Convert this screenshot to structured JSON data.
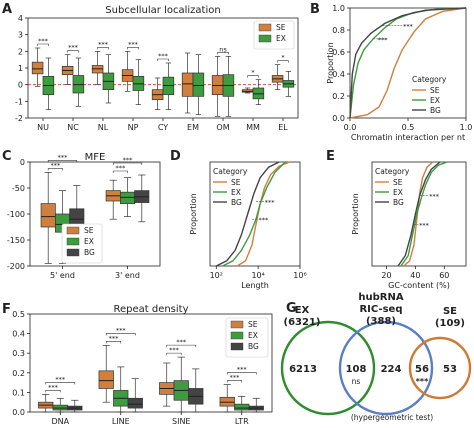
{
  "colors": {
    "SE": "#d07f3f",
    "EX": "#3e9b3f",
    "BG": "#444444",
    "venn_EX": "#2e8b2e",
    "venn_RIC": "#5a7fc4",
    "venn_SE": "#cf7a34",
    "median": "#222222"
  },
  "panel_labels": {
    "A": "A",
    "B": "B",
    "C": "C",
    "D": "D",
    "E": "E",
    "F": "F",
    "G": "G"
  },
  "chart_data": [
    {
      "id": "A",
      "type": "box",
      "title": "Subcellular localization",
      "categories": [
        "NU",
        "NC",
        "NL",
        "NP",
        "CY",
        "EM",
        "OM",
        "MM",
        "EL"
      ],
      "ylim": [
        -2,
        4
      ],
      "yticks": [
        -2,
        -1,
        0,
        1,
        2,
        3,
        4
      ],
      "legend": {
        "position": "top-right",
        "entries": [
          "SE",
          "EX"
        ]
      },
      "annotations": [
        "***",
        "***",
        "***",
        "***",
        "***",
        "",
        "ns",
        "*",
        "*"
      ],
      "series": [
        {
          "name": "SE",
          "boxes": [
            {
              "lo": -0.1,
              "q1": 0.65,
              "med": 0.95,
              "q3": 1.35,
              "hi": 2.2
            },
            {
              "lo": 0.0,
              "q1": 0.6,
              "med": 0.85,
              "q3": 1.1,
              "hi": 1.8
            },
            {
              "lo": 0.0,
              "q1": 0.7,
              "med": 0.95,
              "q3": 1.15,
              "hi": 2.0
            },
            {
              "lo": -0.4,
              "q1": 0.2,
              "med": 0.55,
              "q3": 0.9,
              "hi": 2.0
            },
            {
              "lo": -1.5,
              "q1": -0.9,
              "med": -0.6,
              "q3": -0.3,
              "hi": 0.4
            },
            {
              "lo": -1.7,
              "q1": -0.7,
              "med": 0.05,
              "q3": 0.7,
              "hi": 1.9
            },
            {
              "lo": -1.9,
              "q1": -0.6,
              "med": -0.05,
              "q3": 0.55,
              "hi": 1.7
            },
            {
              "lo": -0.5,
              "q1": -0.45,
              "med": -0.4,
              "q3": -0.3,
              "hi": -0.2
            },
            {
              "lo": -0.3,
              "q1": 0.15,
              "med": 0.35,
              "q3": 0.55,
              "hi": 1.2
            }
          ]
        },
        {
          "name": "EX",
          "boxes": [
            {
              "lo": -1.5,
              "q1": -0.6,
              "med": -0.05,
              "q3": 0.5,
              "hi": 1.6
            },
            {
              "lo": -1.3,
              "q1": -0.5,
              "med": 0.0,
              "q3": 0.55,
              "hi": 1.6
            },
            {
              "lo": -1.1,
              "q1": -0.3,
              "med": 0.2,
              "q3": 0.7,
              "hi": 1.8
            },
            {
              "lo": -1.2,
              "q1": -0.35,
              "med": 0.05,
              "q3": 0.5,
              "hi": 1.5
            },
            {
              "lo": -1.5,
              "q1": -0.6,
              "med": -0.05,
              "q3": 0.45,
              "hi": 1.3
            },
            {
              "lo": -1.8,
              "q1": -0.7,
              "med": -0.05,
              "q3": 0.7,
              "hi": 1.8
            },
            {
              "lo": -1.9,
              "q1": -0.7,
              "med": -0.05,
              "q3": 0.6,
              "hi": 1.7
            },
            {
              "lo": -1.2,
              "q1": -0.85,
              "med": -0.55,
              "q3": -0.2,
              "hi": 0.3
            },
            {
              "lo": -0.7,
              "q1": -0.15,
              "med": 0.05,
              "q3": 0.25,
              "hi": 0.8
            }
          ]
        }
      ]
    },
    {
      "id": "B",
      "type": "line",
      "xlabel": "Chromatin interaction per nt",
      "ylabel": "Proportion",
      "xlim": [
        0,
        1.0
      ],
      "ylim": [
        0,
        1.0
      ],
      "xticks": [
        0.0,
        0.5,
        1.0
      ],
      "yticks": [
        0.0,
        0.2,
        0.4,
        0.6,
        0.8,
        1.0
      ],
      "legend": {
        "title": "Category",
        "position": "bottom-right",
        "entries": [
          "SE",
          "EX",
          "BG"
        ]
      },
      "annotations": [
        "***",
        "***"
      ],
      "series": [
        {
          "name": "SE",
          "points": [
            [
              0,
              0
            ],
            [
              0.15,
              0.03
            ],
            [
              0.25,
              0.1
            ],
            [
              0.32,
              0.25
            ],
            [
              0.38,
              0.45
            ],
            [
              0.45,
              0.62
            ],
            [
              0.55,
              0.78
            ],
            [
              0.65,
              0.9
            ],
            [
              0.8,
              0.97
            ],
            [
              1.0,
              1.0
            ]
          ]
        },
        {
          "name": "EX",
          "points": [
            [
              0,
              0
            ],
            [
              0.03,
              0.3
            ],
            [
              0.07,
              0.5
            ],
            [
              0.12,
              0.62
            ],
            [
              0.2,
              0.72
            ],
            [
              0.3,
              0.82
            ],
            [
              0.4,
              0.9
            ],
            [
              0.55,
              0.96
            ],
            [
              0.75,
              0.99
            ],
            [
              1.0,
              1.0
            ]
          ]
        },
        {
          "name": "BG",
          "points": [
            [
              0,
              0
            ],
            [
              0.02,
              0.4
            ],
            [
              0.05,
              0.58
            ],
            [
              0.1,
              0.68
            ],
            [
              0.18,
              0.77
            ],
            [
              0.3,
              0.86
            ],
            [
              0.45,
              0.93
            ],
            [
              0.65,
              0.98
            ],
            [
              1.0,
              1.0
            ]
          ]
        }
      ]
    },
    {
      "id": "C",
      "type": "box",
      "title": "MFE",
      "categories": [
        "5' end",
        "3' end"
      ],
      "ylim": [
        -200,
        0
      ],
      "yticks": [
        -200,
        -150,
        -100,
        -50,
        0
      ],
      "legend": {
        "position": "bottom-center",
        "entries": [
          "SE",
          "EX",
          "BG"
        ]
      },
      "annotations": [
        "***",
        "***",
        "***",
        "***"
      ],
      "series": [
        {
          "name": "SE",
          "boxes": [
            {
              "lo": -195,
              "q1": -125,
              "med": -105,
              "q3": -80,
              "hi": -20
            },
            {
              "lo": -110,
              "q1": -75,
              "med": -65,
              "q3": -55,
              "hi": -35
            }
          ]
        },
        {
          "name": "EX",
          "boxes": [
            {
              "lo": -195,
              "q1": -135,
              "med": -120,
              "q3": -100,
              "hi": -55
            },
            {
              "lo": -105,
              "q1": -80,
              "med": -68,
              "q3": -58,
              "hi": -30
            }
          ]
        },
        {
          "name": "BG",
          "boxes": [
            {
              "lo": -185,
              "q1": -125,
              "med": -110,
              "q3": -90,
              "hi": -45
            },
            {
              "lo": -115,
              "q1": -78,
              "med": -67,
              "q3": -55,
              "hi": -25
            }
          ]
        }
      ]
    },
    {
      "id": "D",
      "type": "line",
      "xlabel": "Length",
      "ylabel": "Proportion",
      "xscale": "log",
      "xlim_log10": [
        1.7,
        6.0
      ],
      "ylim": [
        0,
        1.0
      ],
      "xtick_labels": [
        "10²",
        "10⁴",
        "10⁶"
      ],
      "xtick_exponents": [
        2,
        4,
        6
      ],
      "legend": {
        "title": "Category",
        "position": "top-left",
        "entries": [
          "SE",
          "EX",
          "BG"
        ]
      },
      "annotations": [
        "***",
        "***"
      ],
      "series": [
        {
          "name": "SE",
          "points": [
            [
              3.0,
              0
            ],
            [
              3.4,
              0.05
            ],
            [
              3.7,
              0.2
            ],
            [
              3.9,
              0.4
            ],
            [
              4.1,
              0.6
            ],
            [
              4.3,
              0.75
            ],
            [
              4.6,
              0.88
            ],
            [
              5.0,
              0.96
            ],
            [
              5.5,
              1.0
            ]
          ]
        },
        {
          "name": "EX",
          "points": [
            [
              2.3,
              0
            ],
            [
              2.8,
              0.05
            ],
            [
              3.2,
              0.15
            ],
            [
              3.6,
              0.3
            ],
            [
              3.9,
              0.45
            ],
            [
              4.1,
              0.6
            ],
            [
              4.4,
              0.75
            ],
            [
              4.8,
              0.9
            ],
            [
              5.3,
              1.0
            ]
          ]
        },
        {
          "name": "BG",
          "points": [
            [
              2.0,
              0
            ],
            [
              2.5,
              0.05
            ],
            [
              2.9,
              0.15
            ],
            [
              3.2,
              0.3
            ],
            [
              3.5,
              0.5
            ],
            [
              3.8,
              0.7
            ],
            [
              4.1,
              0.85
            ],
            [
              4.5,
              0.95
            ],
            [
              5.0,
              1.0
            ]
          ]
        }
      ]
    },
    {
      "id": "E",
      "type": "line",
      "xlabel": "GC-content (%)",
      "ylabel": "Proportion",
      "xlim": [
        10,
        75
      ],
      "ylim": [
        0,
        1.0
      ],
      "xticks": [
        20,
        40,
        60
      ],
      "legend": {
        "title": "Category",
        "position": "top-left",
        "entries": [
          "SE",
          "EX",
          "BG"
        ]
      },
      "annotations": [
        "***",
        "***"
      ],
      "series": [
        {
          "name": "SE",
          "points": [
            [
              32,
              0
            ],
            [
              36,
              0.05
            ],
            [
              39,
              0.2
            ],
            [
              41,
              0.45
            ],
            [
              43,
              0.7
            ],
            [
              45,
              0.85
            ],
            [
              48,
              0.95
            ],
            [
              52,
              1.0
            ]
          ]
        },
        {
          "name": "EX",
          "points": [
            [
              30,
              0
            ],
            [
              35,
              0.1
            ],
            [
              38,
              0.3
            ],
            [
              41,
              0.5
            ],
            [
              44,
              0.65
            ],
            [
              47,
              0.78
            ],
            [
              51,
              0.9
            ],
            [
              56,
              0.97
            ],
            [
              62,
              1.0
            ]
          ]
        },
        {
          "name": "BG",
          "points": [
            [
              28,
              0
            ],
            [
              33,
              0.1
            ],
            [
              37,
              0.3
            ],
            [
              40,
              0.5
            ],
            [
              43,
              0.68
            ],
            [
              47,
              0.83
            ],
            [
              51,
              0.93
            ],
            [
              57,
              1.0
            ]
          ]
        }
      ]
    },
    {
      "id": "F",
      "type": "box",
      "title": "Repeat density",
      "categories": [
        "DNA",
        "LINE",
        "SINE",
        "LTR"
      ],
      "ylim": [
        0,
        0.5
      ],
      "yticks": [
        0.0,
        0.1,
        0.2,
        0.3,
        0.4,
        0.5
      ],
      "legend": {
        "position": "top-right",
        "entries": [
          "SE",
          "EX",
          "BG"
        ]
      },
      "annotations": [
        "***",
        "***",
        "***",
        "***",
        "***",
        "***",
        "***",
        "***"
      ],
      "series": [
        {
          "name": "SE",
          "boxes": [
            {
              "lo": 0.0,
              "q1": 0.02,
              "med": 0.035,
              "q3": 0.05,
              "hi": 0.09
            },
            {
              "lo": 0.05,
              "q1": 0.12,
              "med": 0.16,
              "q3": 0.21,
              "hi": 0.34
            },
            {
              "lo": 0.03,
              "q1": 0.09,
              "med": 0.12,
              "q3": 0.15,
              "hi": 0.25
            },
            {
              "lo": 0.0,
              "q1": 0.03,
              "med": 0.05,
              "q3": 0.075,
              "hi": 0.14
            }
          ]
        },
        {
          "name": "EX",
          "boxes": [
            {
              "lo": 0.0,
              "q1": 0.01,
              "med": 0.02,
              "q3": 0.035,
              "hi": 0.07
            },
            {
              "lo": 0.0,
              "q1": 0.03,
              "med": 0.07,
              "q3": 0.11,
              "hi": 0.23
            },
            {
              "lo": 0.0,
              "q1": 0.06,
              "med": 0.11,
              "q3": 0.16,
              "hi": 0.28
            },
            {
              "lo": 0.0,
              "q1": 0.01,
              "med": 0.02,
              "q3": 0.04,
              "hi": 0.08
            }
          ]
        },
        {
          "name": "BG",
          "boxes": [
            {
              "lo": 0.0,
              "q1": 0.01,
              "med": 0.02,
              "q3": 0.03,
              "hi": 0.06
            },
            {
              "lo": 0.0,
              "q1": 0.02,
              "med": 0.04,
              "q3": 0.07,
              "hi": 0.17
            },
            {
              "lo": 0.0,
              "q1": 0.04,
              "med": 0.08,
              "q3": 0.12,
              "hi": 0.22
            },
            {
              "lo": 0.0,
              "q1": 0.01,
              "med": 0.02,
              "q3": 0.03,
              "hi": 0.07
            }
          ]
        }
      ]
    },
    {
      "id": "G",
      "type": "venn",
      "sets": [
        {
          "name": "EX",
          "count": "(6321)",
          "color": "#2e8b2e"
        },
        {
          "name": "hubRNA\nRIC-seq",
          "count": "(388)",
          "color": "#5a7fc4"
        },
        {
          "name": "SE",
          "count": "(109)",
          "color": "#cf7a34"
        }
      ],
      "regions": {
        "ex_only": "6213",
        "ex_ric": "108",
        "ric_only": "224",
        "ric_se": "56",
        "se_only": "53"
      },
      "region_notes": {
        "ex_ric": "ns",
        "ric_se": "***"
      },
      "footnote": "(hypergeometric test)"
    }
  ]
}
